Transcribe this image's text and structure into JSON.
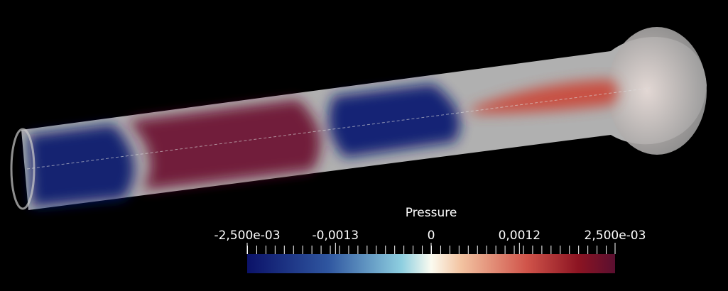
{
  "colorbar": {
    "title": "Pressure",
    "ticks": [
      {
        "value": -0.0025,
        "label": "-2,500e-03"
      },
      {
        "value": -0.0013,
        "label": "-0,0013"
      },
      {
        "value": 0,
        "label": "0"
      },
      {
        "value": 0.0012,
        "label": "0,0012"
      },
      {
        "value": 0.0025,
        "label": "2,500e-03"
      }
    ]
  }
}
